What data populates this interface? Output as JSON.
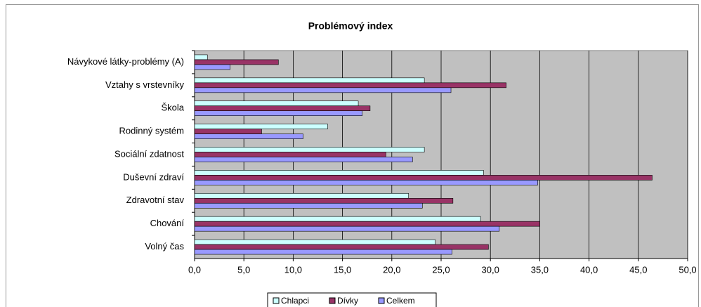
{
  "chart_data": {
    "type": "bar",
    "orientation": "horizontal",
    "title": "Problémový index",
    "categories": [
      "Návykové látky-problémy (A)",
      "Vztahy s vrstevníky",
      "Škola",
      "Rodinný systém",
      "Sociální zdatnost",
      "Duševní zdraví",
      "Zdravotní stav",
      "Chování",
      "Volný čas"
    ],
    "series": [
      {
        "name": "Chlapci",
        "color": "#ccffff",
        "values": [
          1.3,
          23.3,
          16.6,
          13.5,
          23.3,
          29.3,
          21.7,
          29.0,
          24.4
        ]
      },
      {
        "name": "Dívky",
        "color": "#993366",
        "values": [
          8.5,
          31.6,
          17.8,
          6.8,
          19.4,
          46.4,
          26.2,
          35.0,
          29.8
        ]
      },
      {
        "name": "Celkem",
        "color": "#9999ff",
        "values": [
          3.6,
          26.0,
          17.0,
          11.0,
          22.1,
          34.8,
          23.1,
          30.9,
          26.1
        ]
      }
    ],
    "xlim": [
      0,
      50
    ],
    "xticks": [
      {
        "value": 0,
        "label": "0,0"
      },
      {
        "value": 5,
        "label": "5,0"
      },
      {
        "value": 10,
        "label": "10,0"
      },
      {
        "value": 15,
        "label": "15,0"
      },
      {
        "value": 20,
        "label": "20,0"
      },
      {
        "value": 25,
        "label": "25,0"
      },
      {
        "value": 30,
        "label": "30,0"
      },
      {
        "value": 35,
        "label": "35,0"
      },
      {
        "value": 40,
        "label": "40,0"
      },
      {
        "value": 45,
        "label": "45,0"
      },
      {
        "value": 50,
        "label": "50,0"
      }
    ],
    "grid": true,
    "legend": "bottom"
  }
}
